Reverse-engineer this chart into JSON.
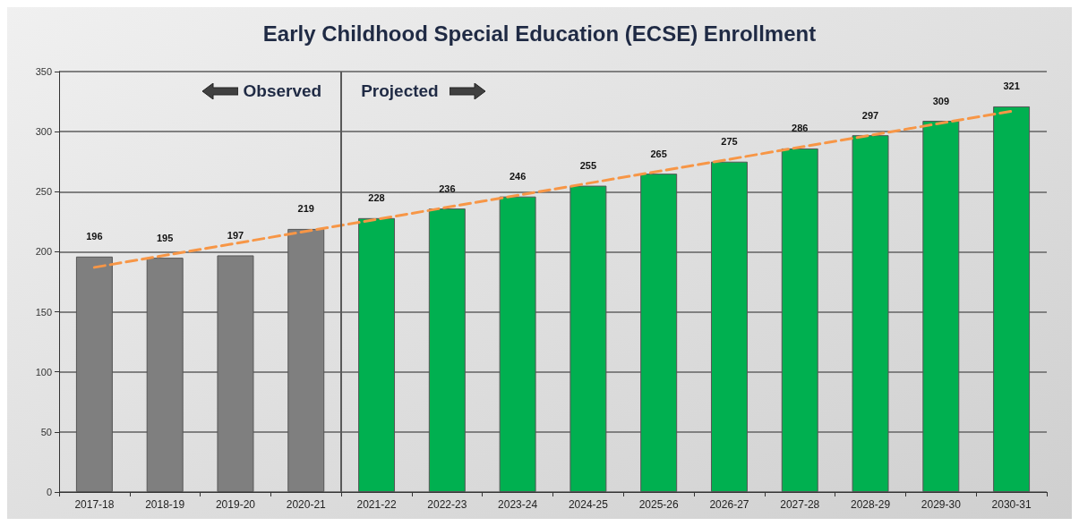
{
  "chart_data": {
    "type": "bar",
    "title": "Early Childhood Special Education (ECSE) Enrollment",
    "categories": [
      "2017-18",
      "2018-19",
      "2019-20",
      "2020-21",
      "2021-22",
      "2022-23",
      "2023-24",
      "2024-25",
      "2025-26",
      "2026-27",
      "2027-28",
      "2028-29",
      "2029-30",
      "2030-31"
    ],
    "series": [
      {
        "values": [
          196,
          195,
          197,
          219,
          228,
          236,
          246,
          255,
          265,
          275,
          286,
          297,
          309,
          321
        ],
        "colors": [
          "#7f7f7f",
          "#7f7f7f",
          "#7f7f7f",
          "#7f7f7f",
          "#00b050",
          "#00b050",
          "#00b050",
          "#00b050",
          "#00b050",
          "#00b050",
          "#00b050",
          "#00b050",
          "#00b050",
          "#00b050"
        ],
        "data_labels": true
      },
      {
        "type": "line",
        "x": [
          "2017-18",
          "2030-31"
        ],
        "values": [
          187,
          317
        ],
        "color": "#f79646",
        "line_style": "dashed",
        "marker": "none"
      }
    ],
    "ylim": [
      0,
      350
    ],
    "yticks": [
      0,
      50,
      100,
      150,
      200,
      250,
      300,
      350
    ],
    "grid": "y",
    "ref_lines": [
      {
        "axis": "x",
        "value": "2021-22",
        "color": "#595959"
      }
    ],
    "annotations": [
      "Observed",
      "Projected"
    ]
  }
}
